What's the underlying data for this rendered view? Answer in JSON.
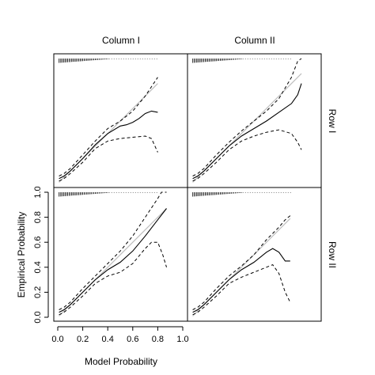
{
  "chart_data": {
    "type": "line",
    "layout": "2x2 trellis",
    "columns": [
      "Column I",
      "Column II"
    ],
    "rows": [
      "Row I",
      "Row II"
    ],
    "xlabel": "Model Probability",
    "ylabel": "Empirical Probability",
    "xlim": [
      0,
      1
    ],
    "ylim": [
      0,
      1
    ],
    "x_ticks": [
      "0.0",
      "0.2",
      "0.4",
      "0.6",
      "0.8",
      "1.0"
    ],
    "y_ticks": [
      "0.0",
      "0.2",
      "0.4",
      "0.6",
      "0.8",
      "1.0"
    ],
    "panels": [
      {
        "column": "Column I",
        "row": "Row I",
        "estimate": [
          [
            0.01,
            0.04
          ],
          [
            0.05,
            0.06
          ],
          [
            0.1,
            0.1
          ],
          [
            0.2,
            0.2
          ],
          [
            0.3,
            0.31
          ],
          [
            0.4,
            0.4
          ],
          [
            0.5,
            0.46
          ],
          [
            0.55,
            0.47
          ],
          [
            0.6,
            0.49
          ],
          [
            0.65,
            0.52
          ],
          [
            0.7,
            0.56
          ],
          [
            0.75,
            0.58
          ],
          [
            0.8,
            0.57
          ]
        ],
        "upper": [
          [
            0.01,
            0.06
          ],
          [
            0.05,
            0.08
          ],
          [
            0.1,
            0.12
          ],
          [
            0.2,
            0.23
          ],
          [
            0.3,
            0.34
          ],
          [
            0.4,
            0.44
          ],
          [
            0.5,
            0.5
          ],
          [
            0.6,
            0.58
          ],
          [
            0.7,
            0.7
          ],
          [
            0.8,
            0.85
          ]
        ],
        "lower": [
          [
            0.01,
            0.02
          ],
          [
            0.05,
            0.04
          ],
          [
            0.1,
            0.08
          ],
          [
            0.2,
            0.17
          ],
          [
            0.3,
            0.28
          ],
          [
            0.4,
            0.34
          ],
          [
            0.5,
            0.36
          ],
          [
            0.6,
            0.37
          ],
          [
            0.7,
            0.38
          ],
          [
            0.75,
            0.36
          ],
          [
            0.8,
            0.25
          ]
        ]
      },
      {
        "column": "Column II",
        "row": "Row I",
        "estimate": [
          [
            0.01,
            0.04
          ],
          [
            0.05,
            0.06
          ],
          [
            0.1,
            0.1
          ],
          [
            0.2,
            0.2
          ],
          [
            0.3,
            0.3
          ],
          [
            0.4,
            0.38
          ],
          [
            0.5,
            0.44
          ],
          [
            0.6,
            0.5
          ],
          [
            0.7,
            0.57
          ],
          [
            0.8,
            0.64
          ],
          [
            0.85,
            0.71
          ],
          [
            0.88,
            0.8
          ]
        ],
        "upper": [
          [
            0.01,
            0.06
          ],
          [
            0.05,
            0.08
          ],
          [
            0.1,
            0.12
          ],
          [
            0.2,
            0.23
          ],
          [
            0.3,
            0.33
          ],
          [
            0.4,
            0.42
          ],
          [
            0.5,
            0.5
          ],
          [
            0.6,
            0.58
          ],
          [
            0.7,
            0.68
          ],
          [
            0.8,
            0.85
          ],
          [
            0.85,
            0.98
          ],
          [
            0.88,
            1.0
          ]
        ],
        "lower": [
          [
            0.01,
            0.02
          ],
          [
            0.05,
            0.04
          ],
          [
            0.1,
            0.08
          ],
          [
            0.2,
            0.17
          ],
          [
            0.3,
            0.27
          ],
          [
            0.4,
            0.34
          ],
          [
            0.5,
            0.38
          ],
          [
            0.6,
            0.41
          ],
          [
            0.7,
            0.43
          ],
          [
            0.8,
            0.4
          ],
          [
            0.85,
            0.33
          ],
          [
            0.88,
            0.27
          ]
        ]
      },
      {
        "column": "Column I",
        "row": "Row II",
        "estimate": [
          [
            0.01,
            0.04
          ],
          [
            0.05,
            0.06
          ],
          [
            0.1,
            0.1
          ],
          [
            0.2,
            0.2
          ],
          [
            0.3,
            0.3
          ],
          [
            0.4,
            0.38
          ],
          [
            0.5,
            0.44
          ],
          [
            0.6,
            0.53
          ],
          [
            0.7,
            0.65
          ],
          [
            0.8,
            0.78
          ],
          [
            0.87,
            0.87
          ]
        ],
        "upper": [
          [
            0.01,
            0.06
          ],
          [
            0.05,
            0.08
          ],
          [
            0.1,
            0.12
          ],
          [
            0.2,
            0.23
          ],
          [
            0.3,
            0.33
          ],
          [
            0.4,
            0.43
          ],
          [
            0.5,
            0.53
          ],
          [
            0.6,
            0.65
          ],
          [
            0.7,
            0.8
          ],
          [
            0.8,
            0.95
          ],
          [
            0.83,
            1.0
          ],
          [
            0.87,
            1.0
          ]
        ],
        "lower": [
          [
            0.01,
            0.02
          ],
          [
            0.05,
            0.04
          ],
          [
            0.1,
            0.08
          ],
          [
            0.2,
            0.17
          ],
          [
            0.3,
            0.27
          ],
          [
            0.4,
            0.33
          ],
          [
            0.5,
            0.36
          ],
          [
            0.6,
            0.43
          ],
          [
            0.7,
            0.55
          ],
          [
            0.75,
            0.6
          ],
          [
            0.8,
            0.6
          ],
          [
            0.84,
            0.5
          ],
          [
            0.87,
            0.4
          ]
        ]
      },
      {
        "column": "Column II",
        "row": "Row II",
        "estimate": [
          [
            0.01,
            0.04
          ],
          [
            0.05,
            0.06
          ],
          [
            0.1,
            0.1
          ],
          [
            0.2,
            0.2
          ],
          [
            0.3,
            0.3
          ],
          [
            0.4,
            0.38
          ],
          [
            0.5,
            0.44
          ],
          [
            0.6,
            0.52
          ],
          [
            0.65,
            0.55
          ],
          [
            0.7,
            0.52
          ],
          [
            0.75,
            0.45
          ],
          [
            0.79,
            0.45
          ]
        ],
        "upper": [
          [
            0.01,
            0.06
          ],
          [
            0.05,
            0.08
          ],
          [
            0.1,
            0.12
          ],
          [
            0.2,
            0.23
          ],
          [
            0.3,
            0.33
          ],
          [
            0.4,
            0.41
          ],
          [
            0.5,
            0.5
          ],
          [
            0.6,
            0.62
          ],
          [
            0.7,
            0.72
          ],
          [
            0.75,
            0.78
          ],
          [
            0.8,
            0.82
          ]
        ],
        "lower": [
          [
            0.01,
            0.02
          ],
          [
            0.05,
            0.04
          ],
          [
            0.1,
            0.08
          ],
          [
            0.2,
            0.17
          ],
          [
            0.3,
            0.27
          ],
          [
            0.4,
            0.32
          ],
          [
            0.5,
            0.36
          ],
          [
            0.6,
            0.4
          ],
          [
            0.65,
            0.42
          ],
          [
            0.7,
            0.35
          ],
          [
            0.75,
            0.2
          ],
          [
            0.79,
            0.12
          ]
        ]
      }
    ]
  }
}
